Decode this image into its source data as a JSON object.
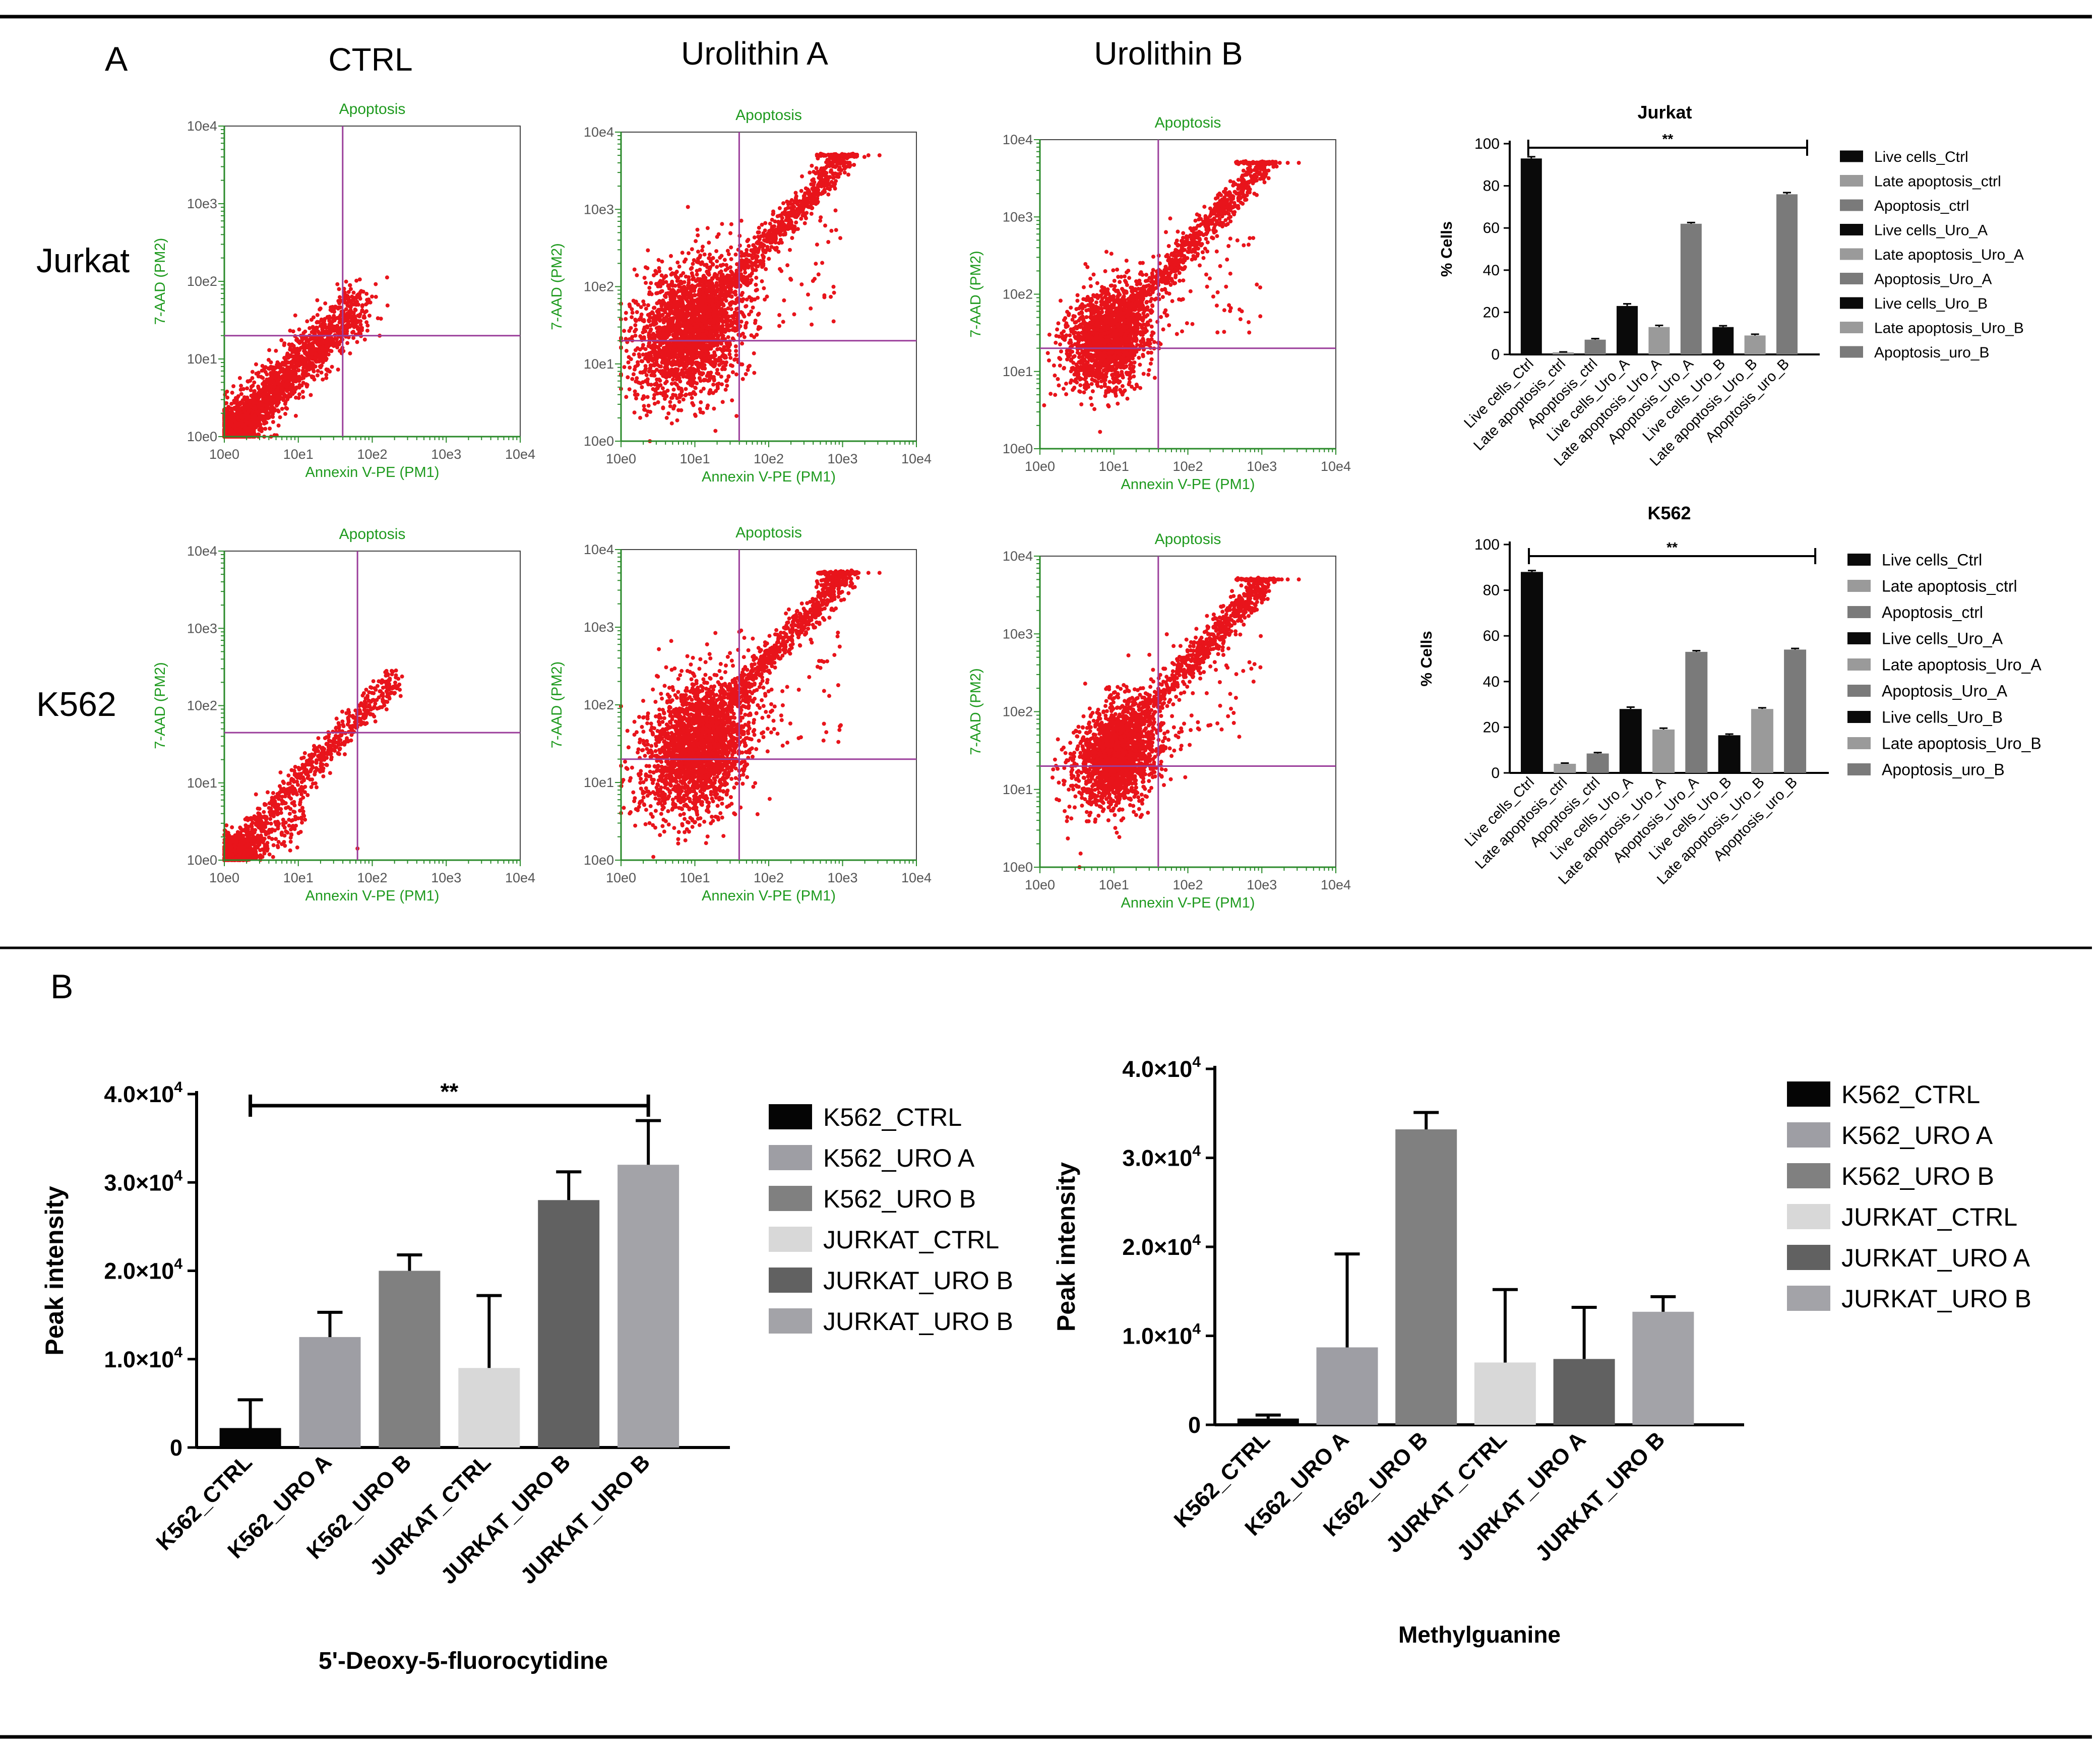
{
  "panels": {
    "a": "A",
    "b": "B"
  },
  "column_headers": [
    "CTRL",
    "Urolithin A",
    "Urolithin B"
  ],
  "row_labels": [
    "Jurkat",
    "K562"
  ],
  "chart_data": [
    {
      "type": "scatter",
      "id": "flow-jurkat-ctrl",
      "title": "Apoptosis",
      "xlabel": "Annexin V-PE (PM1)",
      "ylabel": "7-AAD (PM2)",
      "xscale": "log",
      "yscale": "log",
      "xlim": [
        0,
        4
      ],
      "ylim": [
        0,
        4
      ],
      "xticks": [
        "10e0",
        "10e1",
        "10e2",
        "10e3",
        "10e4"
      ],
      "yticks": [
        "10e0",
        "10e1",
        "10e2",
        "10e3",
        "10e4"
      ],
      "gate": {
        "x": 1.6,
        "y": 1.3
      },
      "point_color": "#e8141b",
      "gate_color": "#9b3e9b",
      "label_color": "#1e9a1e",
      "population": {
        "shape": "compact diagonal cluster",
        "x_range": [
          0,
          2.3
        ],
        "y_range": [
          0,
          2.2
        ],
        "points_estimate": 2000
      }
    },
    {
      "type": "scatter",
      "id": "flow-jurkat-uroa",
      "title": "Apoptosis",
      "xlabel": "Annexin V-PE (PM1)",
      "ylabel": "7-AAD (PM2)",
      "xscale": "log",
      "yscale": "log",
      "xlim": [
        0,
        4
      ],
      "ylim": [
        0,
        4
      ],
      "xticks": [
        "10e0",
        "10e1",
        "10e2",
        "10e3",
        "10e4"
      ],
      "yticks": [
        "10e0",
        "10e1",
        "10e2",
        "10e3",
        "10e4"
      ],
      "gate": {
        "x": 1.6,
        "y": 1.3
      },
      "point_color": "#e8141b",
      "gate_color": "#9b3e9b",
      "label_color": "#1e9a1e",
      "population": {
        "shape": "broad cloud with diagonal tail saturating near 10e3.7",
        "x_range": [
          0,
          3.3
        ],
        "y_range": [
          0,
          3.7
        ],
        "points_estimate": 3000
      }
    },
    {
      "type": "scatter",
      "id": "flow-jurkat-urob",
      "title": "Apoptosis",
      "xlabel": "Annexin V-PE (PM1)",
      "ylabel": "7-AAD (PM2)",
      "xscale": "log",
      "yscale": "log",
      "xlim": [
        0,
        4
      ],
      "ylim": [
        0,
        4
      ],
      "xticks": [
        "10e0",
        "10e1",
        "10e2",
        "10e3",
        "10e4"
      ],
      "yticks": [
        "10e0",
        "10e1",
        "10e2",
        "10e3",
        "10e4"
      ],
      "gate": {
        "x": 1.6,
        "y": 1.3
      },
      "point_color": "#e8141b",
      "gate_color": "#9b3e9b",
      "label_color": "#1e9a1e",
      "population": {
        "shape": "cloud with diagonal tail saturating near 10e3.7",
        "x_range": [
          0,
          3.3
        ],
        "y_range": [
          0,
          3.7
        ],
        "points_estimate": 2600
      }
    },
    {
      "type": "scatter",
      "id": "flow-k562-ctrl",
      "title": "Apoptosis",
      "xlabel": "Annexin V-PE (PM1)",
      "ylabel": "7-AAD (PM2)",
      "xscale": "log",
      "yscale": "log",
      "xlim": [
        0,
        4
      ],
      "ylim": [
        0,
        4
      ],
      "xticks": [
        "10e0",
        "10e1",
        "10e2",
        "10e3",
        "10e4"
      ],
      "yticks": [
        "10e0",
        "10e1",
        "10e2",
        "10e3",
        "10e4"
      ],
      "gate": {
        "x": 1.8,
        "y": 1.65
      },
      "point_color": "#e8141b",
      "gate_color": "#9b3e9b",
      "label_color": "#1e9a1e",
      "population": {
        "shape": "dense corner cluster with thin diagonal",
        "x_range": [
          0,
          2.3
        ],
        "y_range": [
          0,
          2.6
        ],
        "points_estimate": 2000
      }
    },
    {
      "type": "scatter",
      "id": "flow-k562-uroa",
      "title": "Apoptosis",
      "xlabel": "Annexin V-PE (PM1)",
      "ylabel": "7-AAD (PM2)",
      "xscale": "log",
      "yscale": "log",
      "xlim": [
        0,
        4
      ],
      "ylim": [
        0,
        4
      ],
      "xticks": [
        "10e0",
        "10e1",
        "10e2",
        "10e3",
        "10e4"
      ],
      "yticks": [
        "10e0",
        "10e1",
        "10e2",
        "10e3",
        "10e4"
      ],
      "gate": {
        "x": 1.6,
        "y": 1.3
      },
      "point_color": "#e8141b",
      "gate_color": "#9b3e9b",
      "label_color": "#1e9a1e",
      "population": {
        "shape": "broad cloud with diagonal tail saturating near 10e3.7",
        "x_range": [
          0.2,
          3.3
        ],
        "y_range": [
          0,
          3.7
        ],
        "points_estimate": 3200
      }
    },
    {
      "type": "scatter",
      "id": "flow-k562-urob",
      "title": "Apoptosis",
      "xlabel": "Annexin V-PE (PM1)",
      "ylabel": "7-AAD (PM2)",
      "xscale": "log",
      "yscale": "log",
      "xlim": [
        0,
        4
      ],
      "ylim": [
        0,
        4
      ],
      "xticks": [
        "10e0",
        "10e1",
        "10e2",
        "10e3",
        "10e4"
      ],
      "yticks": [
        "10e0",
        "10e1",
        "10e2",
        "10e3",
        "10e4"
      ],
      "gate": {
        "x": 1.6,
        "y": 1.3
      },
      "point_color": "#e8141b",
      "gate_color": "#9b3e9b",
      "label_color": "#1e9a1e",
      "population": {
        "shape": "cloud with diagonal tail saturating near 10e3.7",
        "x_range": [
          0,
          3.3
        ],
        "y_range": [
          0,
          3.7
        ],
        "points_estimate": 2700
      }
    },
    {
      "type": "bar",
      "id": "bar-jurkat",
      "title": "Jurkat",
      "ylabel": "% Cells",
      "ylim": [
        0,
        100
      ],
      "yticks": [
        "0",
        "20",
        "40",
        "60",
        "80",
        "100"
      ],
      "categories": [
        "Live cells_Ctrl",
        "Late apoptosis_ctrl",
        "Apoptosis_ctrl",
        "Live cells_Uro_A",
        "Late apoptosis_Uro_A",
        "Apoptosis_Uro_A",
        "Live cells_Uro_B",
        "Late apoptosis_Uro_B",
        "Apoptosis_uro_B"
      ],
      "values": [
        93,
        1,
        7,
        23,
        13,
        62,
        13,
        9,
        76
      ],
      "errors": [
        0.8,
        0.2,
        0.5,
        1,
        0.8,
        0.6,
        0.6,
        0.6,
        0.8
      ],
      "colors": [
        "#0a0a0a",
        "#9a9a9a",
        "#7a7a7a",
        "#0a0a0a",
        "#9a9a9a",
        "#7a7a7a",
        "#0a0a0a",
        "#9a9a9a",
        "#7a7a7a"
      ],
      "legend": [
        "Live cells_Ctrl",
        "Late apoptosis_ctrl",
        "Apoptosis_ctrl",
        "Live cells_Uro_A",
        "Late apoptosis_Uro_A",
        "Apoptosis_Uro_A",
        "Live cells_Uro_B",
        "Late apoptosis_Uro_B",
        "Apoptosis_uro_B"
      ],
      "legend_position": "right",
      "significance": {
        "label": "**",
        "from": 0,
        "to": 8
      }
    },
    {
      "type": "bar",
      "id": "bar-k562",
      "title": "K562",
      "ylabel": "% Cells",
      "ylim": [
        0,
        100
      ],
      "yticks": [
        "0",
        "20",
        "40",
        "60",
        "80",
        "100"
      ],
      "categories": [
        "Live cells_Ctrl",
        "Late apoptosis_ctrl",
        "Apoptosis_ctrl",
        "Live cells_Uro_A",
        "Late apoptosis_Uro_A",
        "Apoptosis_Uro_A",
        "Live cells_Uro_B",
        "Late apoptosis_Uro_B",
        "Apoptosis_uro_B"
      ],
      "values": [
        88,
        4,
        8.5,
        28,
        19,
        53,
        16.5,
        28,
        54
      ],
      "errors": [
        0.6,
        0.3,
        0.4,
        0.8,
        0.6,
        0.5,
        0.5,
        0.5,
        0.5
      ],
      "colors": [
        "#0a0a0a",
        "#9a9a9a",
        "#7a7a7a",
        "#0a0a0a",
        "#9a9a9a",
        "#7a7a7a",
        "#0a0a0a",
        "#9a9a9a",
        "#7a7a7a"
      ],
      "legend": [
        "Live cells_Ctrl",
        "Late apoptosis_ctrl",
        "Apoptosis_ctrl",
        "Live cells_Uro_A",
        "Late apoptosis_Uro_A",
        "Apoptosis_Uro_A",
        "Live cells_Uro_B",
        "Late apoptosis_Uro_B",
        "Apoptosis_uro_B"
      ],
      "legend_position": "right",
      "significance": {
        "label": "**",
        "from": 0,
        "to": 8
      }
    },
    {
      "type": "bar",
      "id": "bar-deoxy",
      "title": "5'-Deoxy-5-fluorocytidine",
      "ylabel": "Peak intensity",
      "ylim": [
        0,
        40000
      ],
      "yticks": [
        {
          "mantissa": "0",
          "exp": ""
        },
        {
          "mantissa": "1.0×10",
          "exp": "4"
        },
        {
          "mantissa": "2.0×10",
          "exp": "4"
        },
        {
          "mantissa": "3.0×10",
          "exp": "4"
        },
        {
          "mantissa": "4.0×10",
          "exp": "4"
        }
      ],
      "categories": [
        "K562_CTRL",
        "K562_URO A",
        "K562_URO B",
        "JURKAT_CTRL",
        "JURKAT_URO B",
        "JURKAT_URO B"
      ],
      "values": [
        2200,
        12500,
        20000,
        9000,
        28000,
        32000
      ],
      "errors": [
        3200,
        2800,
        1800,
        8200,
        3200,
        5000
      ],
      "colors": [
        "#050505",
        "#9e9ea4",
        "#808080",
        "#d8d8d8",
        "#616161",
        "#a3a3a8"
      ],
      "legend": [
        "K562_CTRL",
        "K562_URO A",
        "K562_URO B",
        "JURKAT_CTRL",
        "JURKAT_URO B",
        "JURKAT_URO B"
      ],
      "legend_position": "right",
      "significance": {
        "label": "**",
        "from": 0,
        "to": 5
      }
    },
    {
      "type": "bar",
      "id": "bar-methyl",
      "title": "Methylguanine",
      "ylabel": "Peak intensity",
      "ylim": [
        0,
        40000
      ],
      "yticks": [
        {
          "mantissa": "0",
          "exp": ""
        },
        {
          "mantissa": "1.0×10",
          "exp": "4"
        },
        {
          "mantissa": "2.0×10",
          "exp": "4"
        },
        {
          "mantissa": "3.0×10",
          "exp": "4"
        },
        {
          "mantissa": "4.0×10",
          "exp": "4"
        }
      ],
      "categories": [
        "K562_CTRL",
        "K562_URO A",
        "K562_URO B",
        "JURKAT_CTRL",
        "JURKAT_URO A",
        "JURKAT_URO B"
      ],
      "values": [
        700,
        8700,
        33200,
        7000,
        7400,
        12700
      ],
      "errors": [
        400,
        10500,
        1900,
        8200,
        5800,
        1700
      ],
      "colors": [
        "#050505",
        "#9e9ea4",
        "#808080",
        "#d8d8d8",
        "#616161",
        "#a3a3a8"
      ],
      "legend": [
        "K562_CTRL",
        "K562_URO A",
        "K562_URO B",
        "JURKAT_CTRL",
        "JURKAT_URO A",
        "JURKAT_URO B"
      ],
      "legend_position": "right"
    }
  ]
}
